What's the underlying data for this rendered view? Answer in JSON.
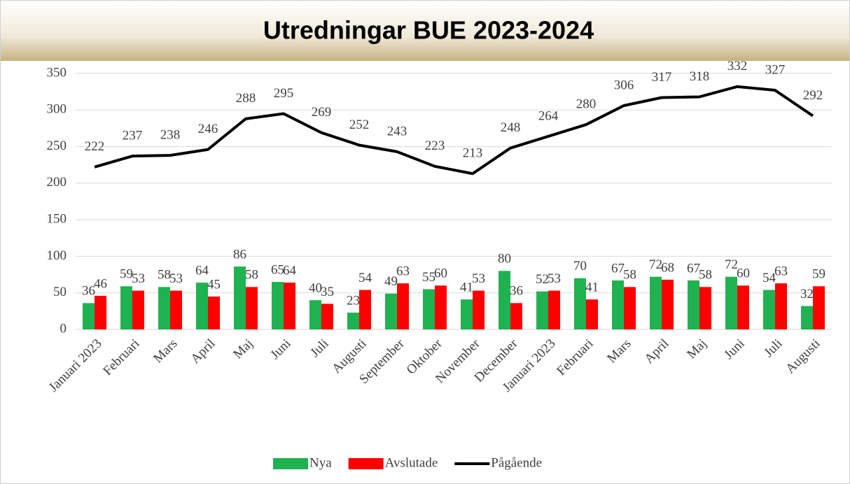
{
  "chart_data": {
    "type": "bar-line",
    "title": "Utredningar BUE 2023-2024",
    "categories": [
      "Januari 2023",
      "Februari",
      "Mars",
      "April",
      "Maj",
      "Juni",
      "Juli",
      "Augusti",
      "September",
      "Oktober",
      "November",
      "December",
      "Januari 2023",
      "Februari",
      "Mars",
      "April",
      "Maj",
      "Juni",
      "Juli",
      "Augusti"
    ],
    "series": [
      {
        "name": "Nya",
        "color": "#1fb251",
        "kind": "bar",
        "values": [
          36,
          59,
          58,
          64,
          86,
          65,
          40,
          23,
          49,
          55,
          41,
          80,
          52,
          70,
          67,
          72,
          67,
          72,
          54,
          32
        ]
      },
      {
        "name": "Avslutade",
        "color": "#ff0000",
        "kind": "bar",
        "values": [
          46,
          53,
          53,
          45,
          58,
          64,
          35,
          54,
          63,
          60,
          53,
          36,
          53,
          41,
          58,
          68,
          58,
          60,
          63,
          59
        ]
      },
      {
        "name": "Pågående",
        "color": "#000000",
        "kind": "line",
        "values": [
          222,
          237,
          238,
          246,
          288,
          295,
          269,
          252,
          243,
          223,
          213,
          248,
          264,
          280,
          306,
          317,
          318,
          332,
          327,
          292
        ]
      }
    ],
    "ylim": [
      0,
      350
    ],
    "yticks": [
      0,
      50,
      100,
      150,
      200,
      250,
      300,
      350
    ],
    "grid": true,
    "legend": "bottom"
  }
}
